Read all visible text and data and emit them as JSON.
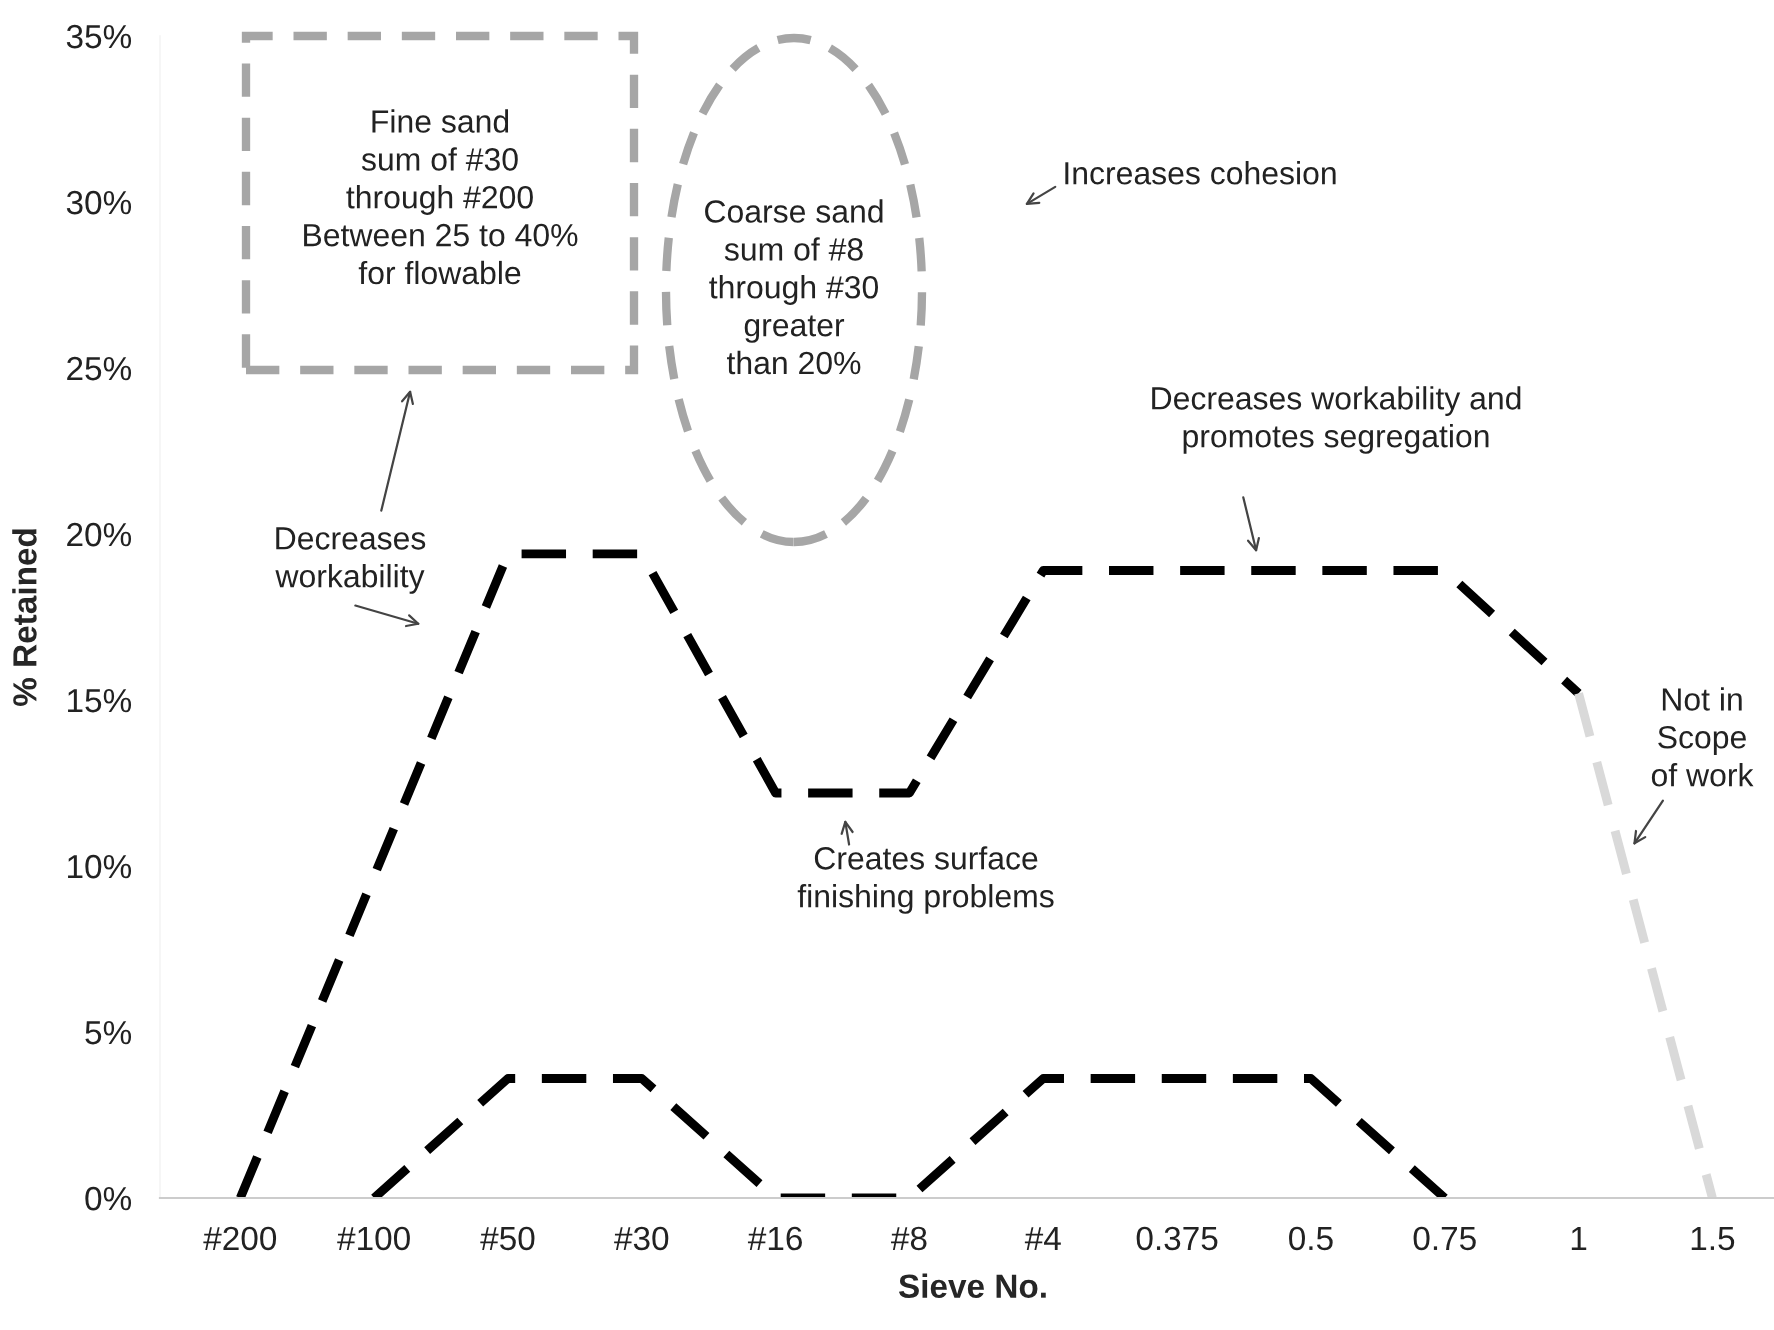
{
  "chart_data": {
    "type": "line",
    "xlabel": "Sieve No.",
    "ylabel": "% Retained",
    "categories": [
      "#200",
      "#100",
      "#50",
      "#30",
      "#16",
      "#8",
      "#4",
      "0.375",
      "0.5",
      "0.75",
      "1",
      "1.5"
    ],
    "series": [
      {
        "color": "#000000",
        "values": [
          0,
          9.7,
          19.4,
          19.4,
          12.2,
          12.2,
          18.9,
          18.9,
          18.9,
          18.9,
          15.2,
          null
        ]
      },
      {
        "color": "#000000",
        "values": [
          null,
          0,
          3.6,
          3.6,
          0,
          0,
          3.6,
          3.6,
          3.6,
          0,
          null,
          null
        ]
      },
      {
        "color": "#d9d9d9",
        "values": [
          null,
          null,
          null,
          null,
          null,
          null,
          null,
          null,
          null,
          null,
          15.2,
          0
        ]
      }
    ],
    "ylim": [
      0,
      35
    ],
    "yticks": [
      {
        "value": 0,
        "label": "0%"
      },
      {
        "value": 5,
        "label": "5%"
      },
      {
        "value": 10,
        "label": "10%"
      },
      {
        "value": 15,
        "label": "15%"
      },
      {
        "value": 20,
        "label": "20%"
      },
      {
        "value": 25,
        "label": "25%"
      },
      {
        "value": 30,
        "label": "30%"
      },
      {
        "value": 35,
        "label": "35%"
      }
    ],
    "grid": false,
    "legend": false,
    "marker": "none",
    "line_style": "dashed",
    "annotations": [
      "Fine sand\nsum of #30\nthrough #200\nBetween 25 to 40%\nfor flowable",
      "Coarse sand\nsum of #8\nthrough #30\ngreater\nthan 20%",
      "Increases cohesion",
      "Decreases\nworkability",
      "Creates surface\nfinishing problems",
      "Decreases workability and\npromotes segregation",
      "Not in\nScope\nof work"
    ]
  }
}
